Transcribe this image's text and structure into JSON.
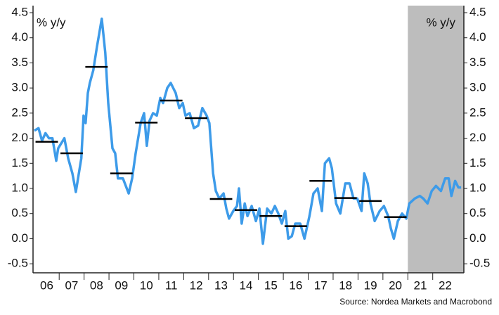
{
  "chart_data": {
    "type": "line",
    "y_label": "% y/y",
    "y2_label": "% y/y",
    "source": "Source: Nordea Markets and Macrobond",
    "xlim": [
      2005.95,
      2023.25
    ],
    "ylim": [
      -0.68,
      4.64
    ],
    "y2lim": [
      -0.68,
      4.64
    ],
    "yticks": [
      -0.5,
      {
        "value": 0,
        "label": "0.0"
      },
      0.5,
      {
        "value": 1,
        "label": "1.0"
      },
      1.5,
      {
        "value": 2,
        "label": "2.0"
      },
      2.5,
      {
        "value": 3,
        "label": "3.0"
      },
      3.5,
      {
        "value": 4,
        "label": "4.0"
      },
      4.5
    ],
    "y2ticks": [
      -0.5,
      {
        "value": 0,
        "label": "0.0"
      },
      0.5,
      {
        "value": 1,
        "label": "1.0"
      },
      1.5,
      {
        "value": 2,
        "label": "2.0"
      },
      2.5,
      {
        "value": 3,
        "label": "3.0"
      },
      3.5,
      {
        "value": 4,
        "label": "4.0"
      },
      4.5
    ],
    "xticks": [
      {
        "value": 2006.5,
        "label": "06"
      },
      {
        "value": 2007.5,
        "label": "07"
      },
      {
        "value": 2008.5,
        "label": "08"
      },
      {
        "value": 2009.5,
        "label": "09"
      },
      {
        "value": 2010.5,
        "label": "10"
      },
      {
        "value": 2011.5,
        "label": "11"
      },
      {
        "value": 2012.5,
        "label": "12"
      },
      {
        "value": 2013.5,
        "label": "13"
      },
      {
        "value": 2014.5,
        "label": "14"
      },
      {
        "value": 2015.5,
        "label": "15"
      },
      {
        "value": 2016.5,
        "label": "16"
      },
      {
        "value": 2017.5,
        "label": "17"
      },
      {
        "value": 2018.5,
        "label": "18"
      },
      {
        "value": 2019.5,
        "label": "19"
      },
      {
        "value": 2020.5,
        "label": "20"
      },
      {
        "value": 2021.5,
        "label": "21"
      },
      {
        "value": 2022.5,
        "label": "22"
      }
    ],
    "shaded_from": 2021.0,
    "shade_color": "#bdbdbd",
    "color": "#3d9be9",
    "x": [
      2006.0,
      2006.17,
      2006.31,
      2006.45,
      2006.59,
      2006.73,
      2006.88,
      2006.96,
      2007.21,
      2007.36,
      2007.53,
      2007.67,
      2007.89,
      2007.98,
      2008.06,
      2008.15,
      2008.23,
      2008.37,
      2008.51,
      2008.71,
      2008.85,
      2008.97,
      2009.14,
      2009.25,
      2009.36,
      2009.56,
      2009.79,
      2009.93,
      2010.07,
      2010.27,
      2010.41,
      2010.52,
      2010.63,
      2010.77,
      2010.92,
      2011.06,
      2011.17,
      2011.34,
      2011.48,
      2011.68,
      2011.82,
      2011.96,
      2012.07,
      2012.24,
      2012.41,
      2012.58,
      2012.75,
      2012.92,
      2013.03,
      2013.18,
      2013.29,
      2013.43,
      2013.6,
      2013.71,
      2013.82,
      2013.99,
      2014.14,
      2014.22,
      2014.33,
      2014.45,
      2014.56,
      2014.73,
      2014.9,
      2015.04,
      2015.18,
      2015.35,
      2015.52,
      2015.66,
      2015.8,
      2015.94,
      2016.08,
      2016.2,
      2016.34,
      2016.48,
      2016.68,
      2016.85,
      2017.05,
      2017.21,
      2017.38,
      2017.55,
      2017.67,
      2017.84,
      2017.95,
      2018.12,
      2018.29,
      2018.49,
      2018.66,
      2018.82,
      2018.97,
      2019.14,
      2019.25,
      2019.39,
      2019.5,
      2019.67,
      2019.87,
      2020.04,
      2020.21,
      2020.32,
      2020.44,
      2020.6,
      2020.77,
      2020.94,
      2021.06,
      2021.28,
      2021.48,
      2021.62,
      2021.79,
      2021.96,
      2022.13,
      2022.33,
      2022.5,
      2022.64,
      2022.75,
      2022.9,
      2023.03,
      2023.14
    ],
    "values": [
      2.15,
      2.2,
      1.95,
      2.1,
      2.0,
      2.0,
      1.55,
      1.8,
      2.0,
      1.6,
      1.3,
      0.93,
      1.6,
      2.45,
      2.3,
      2.9,
      3.1,
      3.35,
      3.8,
      4.38,
      3.7,
      2.7,
      1.8,
      1.7,
      1.2,
      1.2,
      0.9,
      1.2,
      1.7,
      2.3,
      2.5,
      1.85,
      2.35,
      2.5,
      2.45,
      2.8,
      2.7,
      3.0,
      3.1,
      2.9,
      2.6,
      2.7,
      2.45,
      2.5,
      2.2,
      2.25,
      2.6,
      2.45,
      2.3,
      1.3,
      0.95,
      0.8,
      0.9,
      0.6,
      0.4,
      0.55,
      0.65,
      1.0,
      0.3,
      0.7,
      0.45,
      0.65,
      0.35,
      0.6,
      -0.1,
      0.6,
      0.5,
      0.65,
      0.5,
      0.3,
      0.55,
      0.0,
      0.05,
      0.3,
      0.3,
      0.0,
      0.45,
      0.9,
      1.0,
      0.55,
      1.5,
      1.6,
      1.4,
      0.7,
      0.5,
      1.1,
      1.1,
      0.8,
      0.8,
      0.55,
      1.3,
      1.1,
      0.7,
      0.35,
      0.55,
      0.65,
      0.45,
      0.2,
      0.0,
      0.35,
      0.5,
      0.4,
      0.7,
      0.8,
      0.85,
      0.8,
      0.7,
      0.95,
      1.05,
      0.95,
      1.2,
      1.2,
      0.85,
      1.15,
      1.02,
      1.02
    ],
    "averages": {
      "color": "#000000",
      "x": [
        2006.5,
        2007.5,
        2008.5,
        2009.5,
        2010.5,
        2011.5,
        2012.5,
        2013.5,
        2014.5,
        2015.5,
        2016.5,
        2017.5,
        2018.5,
        2019.5,
        2020.5
      ],
      "values": [
        1.93,
        1.7,
        3.42,
        1.3,
        2.31,
        2.75,
        2.4,
        0.79,
        0.57,
        0.45,
        0.25,
        1.15,
        0.81,
        0.75,
        0.43
      ]
    }
  }
}
